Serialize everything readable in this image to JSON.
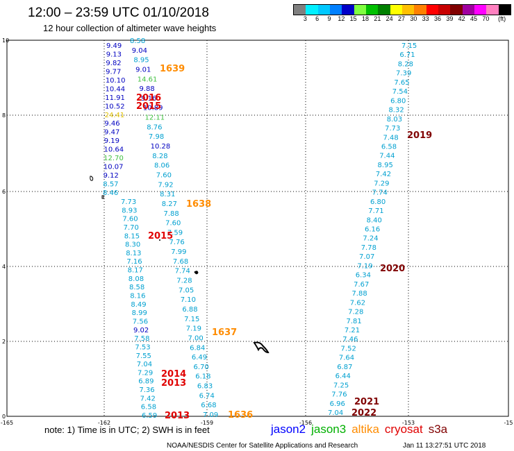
{
  "header": {
    "title": "12:00 – 23:59 UTC 01/10/2018",
    "subtitle": "12 hour collection of altimeter wave heights"
  },
  "colorbar": {
    "colors": [
      "#808080",
      "#00f0ff",
      "#00c8ff",
      "#0080ff",
      "#0000c8",
      "#80ff40",
      "#00c000",
      "#008000",
      "#ffff00",
      "#ffc000",
      "#ff8000",
      "#ff0000",
      "#c80000",
      "#800000",
      "#a000a0",
      "#ff00ff",
      "#ff80c0",
      "#000000"
    ],
    "labels": [
      "3",
      "6",
      "9",
      "12",
      "15",
      "18",
      "21",
      "24",
      "27",
      "30",
      "33",
      "36",
      "39",
      "42",
      "45",
      "70",
      "(ft)"
    ]
  },
  "axes": {
    "x_ticks": [
      "-165",
      "-162",
      "-159",
      "-156",
      "-153",
      "-15"
    ],
    "y_ticks": [
      "10",
      "8",
      "6",
      "4",
      "2",
      "0"
    ]
  },
  "passes": [
    {
      "label": "1639",
      "color": "#ff8c00"
    },
    {
      "label": "2016",
      "color": "#e00000"
    },
    {
      "label": "2015",
      "color": "#e00000"
    },
    {
      "label": "1638",
      "color": "#ff8c00"
    },
    {
      "label": "2015",
      "color": "#e00000"
    },
    {
      "label": "1637",
      "color": "#ff8c00"
    },
    {
      "label": "2014",
      "color": "#e00000"
    },
    {
      "label": "2013",
      "color": "#e00000"
    },
    {
      "label": "2013",
      "color": "#e00000"
    },
    {
      "label": "1636",
      "color": "#ff8c00"
    },
    {
      "label": "2019",
      "color": "#800000"
    },
    {
      "label": "2020",
      "color": "#800000"
    },
    {
      "label": "2021",
      "color": "#800000"
    },
    {
      "label": "2022",
      "color": "#800000"
    }
  ],
  "track1": [
    {
      "v": "9.49",
      "c": "#0000c0"
    },
    {
      "v": "9.13",
      "c": "#0000c0"
    },
    {
      "v": "9.82",
      "c": "#0000c0"
    },
    {
      "v": "9.77",
      "c": "#0000c0"
    },
    {
      "v": "10.10",
      "c": "#0000c0"
    },
    {
      "v": "10.44",
      "c": "#0000c0"
    },
    {
      "v": "11.91",
      "c": "#0000c0"
    },
    {
      "v": "10.52",
      "c": "#0000c0"
    },
    {
      "v": "24.41",
      "c": "#e0c000"
    },
    {
      "v": "9.46",
      "c": "#0000c0"
    },
    {
      "v": "9.47",
      "c": "#0000c0"
    },
    {
      "v": "9.19",
      "c": "#0000c0"
    },
    {
      "v": "10.64",
      "c": "#0000c0"
    },
    {
      "v": "12.70",
      "c": "#40c040"
    },
    {
      "v": "10.07",
      "c": "#0000c0"
    },
    {
      "v": "9.12",
      "c": "#0000c0"
    },
    {
      "v": "8.57",
      "c": "#00a0d0"
    },
    {
      "v": "8.46",
      "c": "#00a0d0"
    }
  ],
  "track2": [
    {
      "v": "8.58",
      "c": "#00a0d0"
    },
    {
      "v": "9.04",
      "c": "#0000c0"
    },
    {
      "v": "8.95",
      "c": "#00a0d0"
    },
    {
      "v": "9.01",
      "c": "#0000c0"
    },
    {
      "v": "14.61",
      "c": "#40c040"
    },
    {
      "v": "9.88",
      "c": "#0000c0"
    },
    {
      "v": "9.16",
      "c": "#0000c0"
    },
    {
      "v": "10.89",
      "c": "#0000c0"
    },
    {
      "v": "12.11",
      "c": "#40c040"
    },
    {
      "v": "8.76",
      "c": "#00a0d0"
    },
    {
      "v": "7.98",
      "c": "#00a0d0"
    },
    {
      "v": "10.28",
      "c": "#0000c0"
    },
    {
      "v": "8.28",
      "c": "#00a0d0"
    },
    {
      "v": "8.06",
      "c": "#00a0d0"
    },
    {
      "v": "7.60",
      "c": "#00a0d0"
    },
    {
      "v": "7.92",
      "c": "#00a0d0"
    },
    {
      "v": "8.31",
      "c": "#00a0d0"
    },
    {
      "v": "8.27",
      "c": "#00a0d0"
    },
    {
      "v": "7.88",
      "c": "#00a0d0"
    },
    {
      "v": "7.60",
      "c": "#00a0d0"
    },
    {
      "v": "7.59",
      "c": "#00a0d0"
    },
    {
      "v": "7.76",
      "c": "#00a0d0"
    },
    {
      "v": "7.99",
      "c": "#00a0d0"
    },
    {
      "v": "7.68",
      "c": "#00a0d0"
    },
    {
      "v": "7.74",
      "c": "#00a0d0"
    },
    {
      "v": "7.28",
      "c": "#00a0d0"
    },
    {
      "v": "7.05",
      "c": "#00a0d0"
    },
    {
      "v": "7.10",
      "c": "#00a0d0"
    },
    {
      "v": "6.88",
      "c": "#00a0d0"
    },
    {
      "v": "7.15",
      "c": "#00a0d0"
    },
    {
      "v": "7.19",
      "c": "#00a0d0"
    },
    {
      "v": "7.00",
      "c": "#00a0d0"
    },
    {
      "v": "6.84",
      "c": "#00a0d0"
    },
    {
      "v": "6.49",
      "c": "#00a0d0"
    },
    {
      "v": "6.70",
      "c": "#00a0d0"
    },
    {
      "v": "6.18",
      "c": "#00a0d0"
    },
    {
      "v": "6.83",
      "c": "#00a0d0"
    },
    {
      "v": "6.74",
      "c": "#00a0d0"
    },
    {
      "v": "6.68",
      "c": "#00a0d0"
    },
    {
      "v": "7.09",
      "c": "#00a0d0"
    }
  ],
  "track3": [
    {
      "v": "7.73",
      "c": "#00a0d0"
    },
    {
      "v": "8.93",
      "c": "#00a0d0"
    },
    {
      "v": "7.60",
      "c": "#00a0d0"
    },
    {
      "v": "7.70",
      "c": "#00a0d0"
    },
    {
      "v": "8.15",
      "c": "#00a0d0"
    },
    {
      "v": "8.30",
      "c": "#00a0d0"
    },
    {
      "v": "8.13",
      "c": "#00a0d0"
    },
    {
      "v": "7.16",
      "c": "#00a0d0"
    },
    {
      "v": "8.17",
      "c": "#00a0d0"
    },
    {
      "v": "8.08",
      "c": "#00a0d0"
    },
    {
      "v": "8.58",
      "c": "#00a0d0"
    },
    {
      "v": "8.16",
      "c": "#00a0d0"
    },
    {
      "v": "8.49",
      "c": "#00a0d0"
    },
    {
      "v": "8.99",
      "c": "#00a0d0"
    },
    {
      "v": "7.56",
      "c": "#00a0d0"
    },
    {
      "v": "9.02",
      "c": "#0000c0"
    },
    {
      "v": "7.58",
      "c": "#00a0d0"
    },
    {
      "v": "7.53",
      "c": "#00a0d0"
    },
    {
      "v": "7.55",
      "c": "#00a0d0"
    },
    {
      "v": "7.04",
      "c": "#00a0d0"
    },
    {
      "v": "7.29",
      "c": "#00a0d0"
    },
    {
      "v": "6.89",
      "c": "#00a0d0"
    },
    {
      "v": "7.36",
      "c": "#00a0d0"
    },
    {
      "v": "7.42",
      "c": "#00a0d0"
    },
    {
      "v": "6.58",
      "c": "#00a0d0"
    },
    {
      "v": "6.59",
      "c": "#00a0d0"
    }
  ],
  "track4": [
    {
      "v": "7.15"
    },
    {
      "v": "6.71"
    },
    {
      "v": "8.28"
    },
    {
      "v": "7.39"
    },
    {
      "v": "7.65"
    },
    {
      "v": "7.54"
    },
    {
      "v": "6.80"
    },
    {
      "v": "8.32"
    },
    {
      "v": "8.03"
    },
    {
      "v": "7.73"
    },
    {
      "v": "7.48"
    },
    {
      "v": "6.58"
    },
    {
      "v": "7.44"
    },
    {
      "v": "8.95"
    },
    {
      "v": "7.42"
    },
    {
      "v": "7.29"
    },
    {
      "v": "7.74"
    },
    {
      "v": "6.80"
    },
    {
      "v": "7.71"
    },
    {
      "v": "8.40"
    },
    {
      "v": "6.16"
    },
    {
      "v": "7.24"
    },
    {
      "v": "7.78"
    },
    {
      "v": "7.07"
    },
    {
      "v": "7.19"
    },
    {
      "v": "6.34"
    },
    {
      "v": "7.67"
    },
    {
      "v": "7.88"
    },
    {
      "v": "7.62"
    },
    {
      "v": "7.28"
    },
    {
      "v": "7.81"
    },
    {
      "v": "7.21"
    },
    {
      "v": "7.46"
    },
    {
      "v": "7.52"
    },
    {
      "v": "7.64"
    },
    {
      "v": "6.87"
    },
    {
      "v": "6.44"
    },
    {
      "v": "7.25"
    },
    {
      "v": "7.76"
    },
    {
      "v": "6.96"
    },
    {
      "v": "7.04"
    }
  ],
  "note": "note: 1) Time is in UTC; 2) SWH is in feet",
  "legend": [
    {
      "label": "jason2",
      "color": "#0000ff"
    },
    {
      "label": "jason3",
      "color": "#00b000"
    },
    {
      "label": "altika",
      "color": "#ff8c00"
    },
    {
      "label": "cryosat",
      "color": "#e00000"
    },
    {
      "label": "s3a",
      "color": "#800000"
    }
  ],
  "credit": "NOAA/NESDIS Center for Satellite Applications and Research",
  "timestamp": "Jan 11 13:27:51 UTC 2018"
}
